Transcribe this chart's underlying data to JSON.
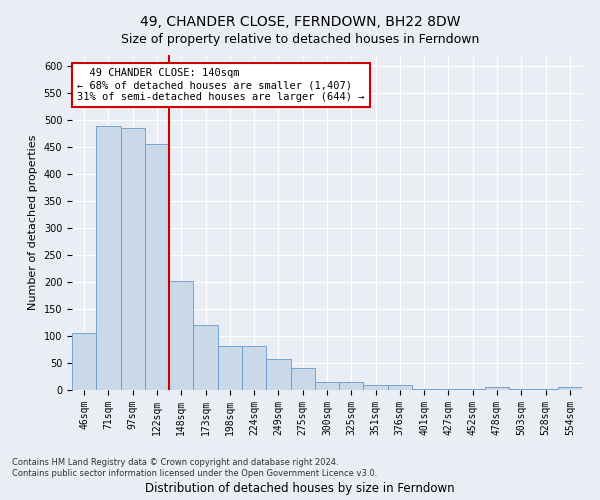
{
  "title": "49, CHANDER CLOSE, FERNDOWN, BH22 8DW",
  "subtitle": "Size of property relative to detached houses in Ferndown",
  "xlabel_bottom": "Distribution of detached houses by size in Ferndown",
  "ylabel": "Number of detached properties",
  "footnote": "Contains HM Land Registry data © Crown copyright and database right 2024.\nContains public sector information licensed under the Open Government Licence v3.0.",
  "bar_labels": [
    "46sqm",
    "71sqm",
    "97sqm",
    "122sqm",
    "148sqm",
    "173sqm",
    "198sqm",
    "224sqm",
    "249sqm",
    "275sqm",
    "300sqm",
    "325sqm",
    "351sqm",
    "376sqm",
    "401sqm",
    "427sqm",
    "452sqm",
    "478sqm",
    "503sqm",
    "528sqm",
    "554sqm"
  ],
  "bar_values": [
    105,
    488,
    485,
    455,
    202,
    120,
    82,
    82,
    57,
    40,
    15,
    15,
    10,
    10,
    1,
    1,
    1,
    6,
    1,
    1,
    6
  ],
  "bar_color": "#c9d9e8",
  "bar_edge_color": "#6699cc",
  "vline_x": 3.5,
  "vline_color": "#cc0000",
  "annotation_text": "  49 CHANDER CLOSE: 140sqm\n← 68% of detached houses are smaller (1,407)\n31% of semi-detached houses are larger (644) →",
  "annotation_box_color": "#cc0000",
  "ylim": [
    0,
    620
  ],
  "yticks": [
    0,
    50,
    100,
    150,
    200,
    250,
    300,
    350,
    400,
    450,
    500,
    550,
    600
  ],
  "background_color": "#eaeef4",
  "grid_color": "#ffffff",
  "title_fontsize": 10,
  "subtitle_fontsize": 9,
  "ylabel_fontsize": 8,
  "tick_fontsize": 7,
  "annotation_fontsize": 7.5,
  "footnote_fontsize": 6
}
